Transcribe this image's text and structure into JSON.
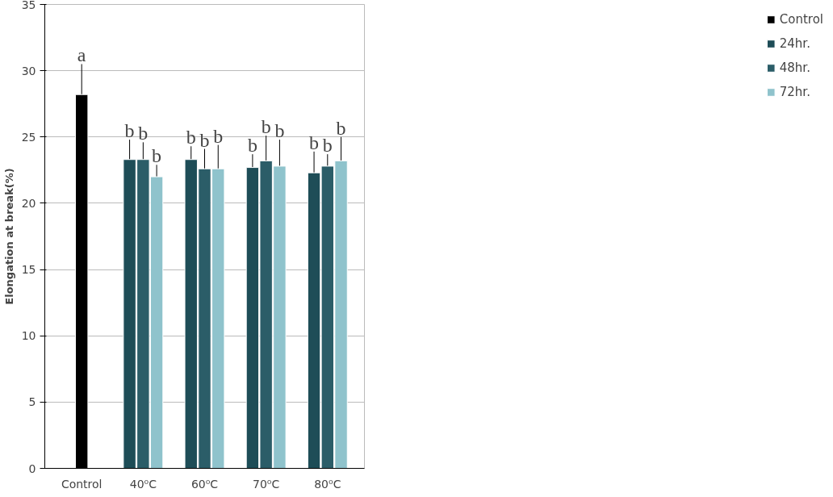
{
  "chart_data": {
    "type": "bar",
    "ylabel": "Elongation at break(%)",
    "categories": [
      "Control",
      "40⁰C",
      "60⁰C",
      "70⁰C",
      "80⁰C"
    ],
    "series": [
      {
        "name": "Control",
        "color": "#000000",
        "values": [
          28.2,
          null,
          null,
          null,
          null
        ],
        "errors": [
          2.3,
          null,
          null,
          null,
          null
        ],
        "value_labels": [
          "a",
          null,
          null,
          null,
          null
        ]
      },
      {
        "name": "24hr.",
        "color": "#1e4d57",
        "values": [
          null,
          23.3,
          23.3,
          22.7,
          22.3
        ],
        "errors": [
          null,
          1.5,
          1.0,
          1.0,
          1.6
        ],
        "value_labels": [
          null,
          "b",
          "b",
          "b",
          "b"
        ]
      },
      {
        "name": "48hr.",
        "color": "#2b5d68",
        "values": [
          null,
          23.3,
          22.6,
          23.2,
          22.8
        ],
        "errors": [
          null,
          1.3,
          1.5,
          1.9,
          0.9
        ],
        "value_labels": [
          null,
          "b",
          "b",
          "b",
          "b"
        ]
      },
      {
        "name": "72hr.",
        "color": "#8fc3cc",
        "values": [
          null,
          22.0,
          22.6,
          22.8,
          23.2
        ],
        "errors": [
          null,
          0.9,
          1.8,
          2.0,
          1.8
        ],
        "value_labels": [
          null,
          "b",
          "b",
          "b",
          "b"
        ]
      }
    ],
    "ylim": [
      0,
      35
    ],
    "yticks": [
      0,
      5,
      10,
      15,
      20,
      25,
      30,
      35
    ],
    "grid": "y",
    "legend": "right"
  }
}
